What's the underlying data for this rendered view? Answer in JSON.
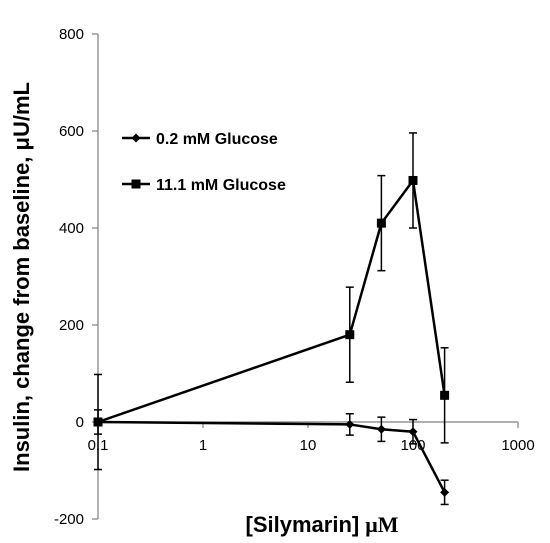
{
  "chart_data": {
    "type": "line",
    "xscale": "log",
    "xlim": [
      0.1,
      1000
    ],
    "ylim": [
      -200,
      800
    ],
    "xticks": [
      0.1,
      1,
      10,
      100,
      1000
    ],
    "xtick_labels": [
      "0.1",
      "1",
      "10",
      "100",
      "1000"
    ],
    "yticks": [
      -200,
      0,
      200,
      400,
      600,
      800
    ],
    "ytick_labels": [
      "-200",
      "0",
      "200",
      "400",
      "600",
      "800"
    ],
    "xlabel": "[Silymarin]",
    "xlabel_unit": "μM",
    "ylabel": "Insulin, change from baseline, μU/mL",
    "grid": false,
    "legend_position": "upper-left",
    "series": [
      {
        "name": "0.2 mM Glucose",
        "marker": "diamond",
        "color": "#000000",
        "x": [
          0.1,
          25,
          50,
          100,
          200
        ],
        "y": [
          0,
          -5,
          -15,
          -20,
          -145
        ],
        "err": [
          25,
          22,
          25,
          25,
          25
        ]
      },
      {
        "name": "11.1 mM Glucose",
        "marker": "square",
        "color": "#000000",
        "x": [
          0.1,
          25,
          50,
          100,
          200
        ],
        "y": [
          0,
          180,
          410,
          498,
          55
        ],
        "err": [
          98,
          98,
          98,
          98,
          98
        ]
      }
    ]
  }
}
